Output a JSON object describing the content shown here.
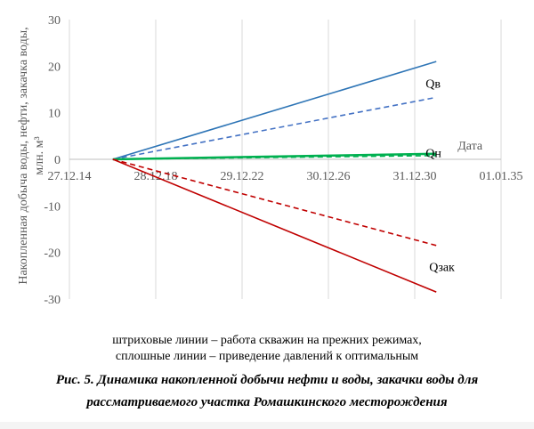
{
  "chart_data": {
    "type": "line",
    "ylabel": "Накопленная добыча воды, нефти, закачка воды, млн. м³",
    "xlabel": "Дата",
    "x_ticks": [
      "27.12.14",
      "28.12.18",
      "29.12.22",
      "30.12.26",
      "31.12.30",
      "01.01.35"
    ],
    "y_ticks": [
      30,
      20,
      10,
      0,
      -10,
      -20,
      -30
    ],
    "ylim": [
      -30,
      30
    ],
    "xlim": [
      "27.12.14",
      "01.01.35"
    ],
    "grid": "vertical",
    "series": [
      {
        "name": "Qв",
        "style": "solid",
        "color": "#2e75b6",
        "x": [
          "01.01.17",
          "31.12.31"
        ],
        "y": [
          0,
          21
        ]
      },
      {
        "name": "Qв",
        "style": "dashed",
        "color": "#4472c4",
        "x": [
          "01.01.17",
          "31.12.31"
        ],
        "y": [
          0,
          13.3
        ]
      },
      {
        "name": "Qн",
        "style": "solid",
        "color": "#00b050",
        "x": [
          "01.01.17",
          "31.12.31"
        ],
        "y": [
          0,
          1.2
        ]
      },
      {
        "name": "Qн",
        "style": "dashed",
        "color": "#00b050",
        "x": [
          "01.01.17",
          "31.12.31"
        ],
        "y": [
          0,
          0.8
        ]
      },
      {
        "name": "Qзак",
        "style": "solid",
        "color": "#c00000",
        "x": [
          "01.01.17",
          "31.12.31"
        ],
        "y": [
          0,
          -28.5
        ]
      },
      {
        "name": "Qзак",
        "style": "dashed",
        "color": "#c00000",
        "x": [
          "01.01.17",
          "31.12.31"
        ],
        "y": [
          0,
          -18.5
        ]
      }
    ],
    "annotations": [
      "Qв",
      "Qн",
      "Qзак"
    ]
  },
  "notes": {
    "line1": "штриховые линии – работа скважин на прежних режимах,",
    "line2": "сплошные линии – приведение давлений к оптимальным"
  },
  "caption": {
    "line1": "Рис. 5. Динамика накопленной добычи нефти и воды, закачки воды для",
    "line2": "рассматриваемого участка Ромашкинского месторождения"
  }
}
